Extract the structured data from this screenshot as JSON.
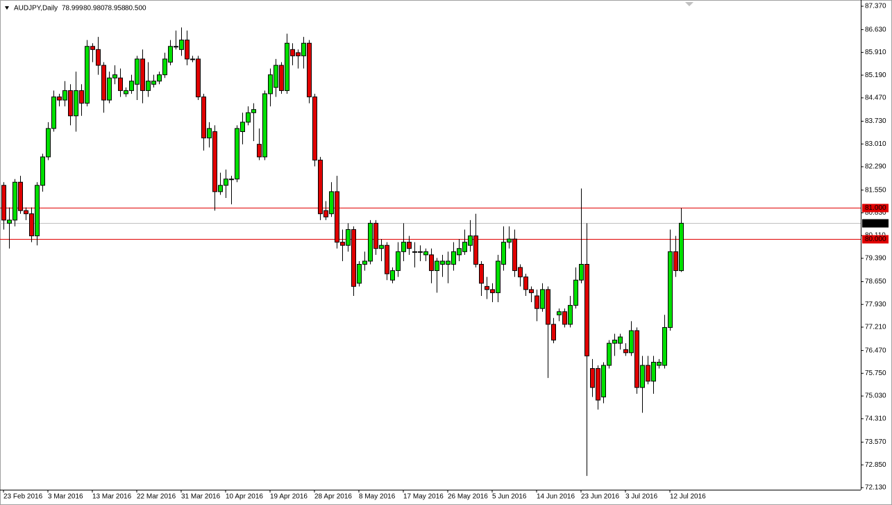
{
  "chart_data": {
    "type": "candlestick",
    "title": "AUDJPY,Daily",
    "header_values": [
      "78.999",
      "80.980",
      "78.958",
      "80.500"
    ],
    "categories": [
      "23 Feb 2016",
      null,
      null,
      null,
      null,
      null,
      null,
      null,
      "3 Mar 2016",
      null,
      null,
      null,
      null,
      null,
      null,
      null,
      "13 Mar 2016",
      null,
      null,
      null,
      null,
      null,
      null,
      null,
      "22 Mar 2016",
      null,
      null,
      null,
      null,
      null,
      null,
      null,
      "31 Mar 2016",
      null,
      null,
      null,
      null,
      null,
      null,
      null,
      "10 Apr 2016",
      null,
      null,
      null,
      null,
      null,
      null,
      null,
      "19 Apr 2016",
      null,
      null,
      null,
      null,
      null,
      null,
      null,
      "28 Apr 2016",
      null,
      null,
      null,
      null,
      null,
      null,
      null,
      "8 May 2016",
      null,
      null,
      null,
      null,
      null,
      null,
      null,
      "17 May 2016",
      null,
      null,
      null,
      null,
      null,
      null,
      null,
      "26 May 2016",
      null,
      null,
      null,
      null,
      null,
      null,
      null,
      "5 Jun 2016",
      null,
      null,
      null,
      null,
      null,
      null,
      null,
      "14 Jun 2016",
      null,
      null,
      null,
      null,
      null,
      null,
      null,
      "23 Jun 2016",
      null,
      null,
      null,
      null,
      null,
      null,
      null,
      "3 Jul 2016",
      null,
      null,
      null,
      null,
      null,
      null,
      null,
      "12 Jul 2016",
      null,
      null
    ],
    "open": [
      81.7,
      80.5,
      80.6,
      81.8,
      80.9,
      80.8,
      80.1,
      81.7,
      82.6,
      83.5,
      84.5,
      84.4,
      84.7,
      83.9,
      84.7,
      84.3,
      86.1,
      86.0,
      85.5,
      84.4,
      85.1,
      85.1,
      84.6,
      84.7,
      84.9,
      85.7,
      84.7,
      84.9,
      85.0,
      85.2,
      85.6,
      86.1,
      86.0,
      86.3,
      85.7,
      85.7,
      84.5,
      83.2,
      83.4,
      81.5,
      81.7,
      81.9,
      81.9,
      83.4,
      83.7,
      84.0,
      83.0,
      82.6,
      84.6,
      84.8,
      85.5,
      84.7,
      86.0,
      85.9,
      85.8,
      86.2,
      84.5,
      82.5,
      80.9,
      80.8,
      81.5,
      79.9,
      79.8,
      80.3,
      78.6,
      79.2,
      79.3,
      80.5,
      79.7,
      79.8,
      78.7,
      79.0,
      79.6,
      79.9,
      79.6,
      79.6,
      79.5,
      79.5,
      79.0,
      79.2,
      79.2,
      79.2,
      79.5,
      79.6,
      79.8,
      80.1,
      79.2,
      78.5,
      78.4,
      78.3,
      79.2,
      79.9,
      80.0,
      79.1,
      78.8,
      78.4,
      78.2,
      77.8,
      78.4,
      77.3,
      77.6,
      77.7,
      77.3,
      77.9,
      78.7,
      79.2,
      75.9,
      75.9,
      75.0,
      76.0,
      76.7,
      76.7,
      76.5,
      76.4,
      77.1,
      75.3,
      76.0,
      75.5,
      76.0,
      76.0,
      77.2,
      79.6,
      78.999
    ],
    "high": [
      81.8,
      81.0,
      81.9,
      82.0,
      81.0,
      81.0,
      81.8,
      82.7,
      83.7,
      84.7,
      84.6,
      85.0,
      84.9,
      85.3,
      84.9,
      86.3,
      86.2,
      86.4,
      85.6,
      85.3,
      85.5,
      85.4,
      84.8,
      85.2,
      85.8,
      86.0,
      85.6,
      85.2,
      85.3,
      85.9,
      86.3,
      86.6,
      86.7,
      86.6,
      85.8,
      85.8,
      84.6,
      83.7,
      83.6,
      82.1,
      82.2,
      82.0,
      83.6,
      84.0,
      84.2,
      84.3,
      83.5,
      84.7,
      85.4,
      85.7,
      85.6,
      86.5,
      86.2,
      86.0,
      86.4,
      86.3,
      84.6,
      82.6,
      81.2,
      81.8,
      82.0,
      80.3,
      80.5,
      80.4,
      79.3,
      79.6,
      80.6,
      80.6,
      80.0,
      79.9,
      79.1,
      79.9,
      80.5,
      80.1,
      79.9,
      79.8,
      79.7,
      79.7,
      79.4,
      79.5,
      79.6,
      79.9,
      80.0,
      80.3,
      80.6,
      80.8,
      79.3,
      78.8,
      78.6,
      79.5,
      80.4,
      80.4,
      80.3,
      79.2,
      78.9,
      78.5,
      78.4,
      78.6,
      78.5,
      77.5,
      77.8,
      77.8,
      78.2,
      79.1,
      81.6,
      80.5,
      76.2,
      76.0,
      76.1,
      76.8,
      77.0,
      77.0,
      76.7,
      77.4,
      77.2,
      76.3,
      76.3,
      76.3,
      76.2,
      77.6,
      80.3,
      80.1,
      80.98
    ],
    "low": [
      80.3,
      79.7,
      80.4,
      80.8,
      80.6,
      79.9,
      79.8,
      81.5,
      82.5,
      83.4,
      84.2,
      84.2,
      83.6,
      83.4,
      83.9,
      84.2,
      85.6,
      85.2,
      84.0,
      84.3,
      84.9,
      84.5,
      84.5,
      84.6,
      84.4,
      84.3,
      84.5,
      84.8,
      84.9,
      85.1,
      85.5,
      86.0,
      85.8,
      85.5,
      85.6,
      84.4,
      82.8,
      82.9,
      80.9,
      81.4,
      81.3,
      81.1,
      81.8,
      83.0,
      83.6,
      83.1,
      82.5,
      82.5,
      84.2,
      84.5,
      84.6,
      84.6,
      85.5,
      85.4,
      85.4,
      84.3,
      82.3,
      80.6,
      80.6,
      80.7,
      79.7,
      79.3,
      79.6,
      78.2,
      78.5,
      79.0,
      79.2,
      79.5,
      79.3,
      78.7,
      78.6,
      78.8,
      79.3,
      79.5,
      79.1,
      79.3,
      79.3,
      78.6,
      78.3,
      78.8,
      78.6,
      79.0,
      79.3,
      79.5,
      79.6,
      79.1,
      78.2,
      78.1,
      78.0,
      78.0,
      79.0,
      79.7,
      78.8,
      78.5,
      78.2,
      78.0,
      77.4,
      77.7,
      75.6,
      76.7,
      77.4,
      77.2,
      77.2,
      77.8,
      78.6,
      72.5,
      75.0,
      74.6,
      74.8,
      75.9,
      76.3,
      76.5,
      76.3,
      76.3,
      75.1,
      74.5,
      75.4,
      75.1,
      75.9,
      75.9,
      77.1,
      78.8,
      78.958
    ],
    "close": [
      80.6,
      80.6,
      81.8,
      80.9,
      80.8,
      80.1,
      81.7,
      82.6,
      83.5,
      84.5,
      84.4,
      84.7,
      83.9,
      84.7,
      84.3,
      86.1,
      86.0,
      85.5,
      84.4,
      85.1,
      85.2,
      84.7,
      84.7,
      85.0,
      85.7,
      84.7,
      85.0,
      85.0,
      85.2,
      85.7,
      86.1,
      86.1,
      86.3,
      85.7,
      85.7,
      84.5,
      83.2,
      83.5,
      81.5,
      81.7,
      81.9,
      81.9,
      83.5,
      83.7,
      84.0,
      84.1,
      82.6,
      84.6,
      85.2,
      85.5,
      84.7,
      86.2,
      85.8,
      85.8,
      86.2,
      84.5,
      82.5,
      80.8,
      80.7,
      81.5,
      79.9,
      79.8,
      80.3,
      78.5,
      79.2,
      79.3,
      80.5,
      79.7,
      79.8,
      78.9,
      79.0,
      79.6,
      79.9,
      79.7,
      79.6,
      79.6,
      79.6,
      79.0,
      79.3,
      79.3,
      79.3,
      79.6,
      79.7,
      79.9,
      80.1,
      79.2,
      78.6,
      78.4,
      78.3,
      79.3,
      79.9,
      80.0,
      79.0,
      78.8,
      78.4,
      78.3,
      77.8,
      78.4,
      77.3,
      76.8,
      77.7,
      77.3,
      77.9,
      78.7,
      79.2,
      76.3,
      75.3,
      74.9,
      76.0,
      76.7,
      76.8,
      76.9,
      76.4,
      77.1,
      75.3,
      76.0,
      75.5,
      76.1,
      76.1,
      77.2,
      79.6,
      79.0,
      80.5
    ],
    "up_color": "#00e000",
    "down_color": "#e00000",
    "ylim": [
      72.063,
      87.568
    ],
    "yticks": [
      {
        "value": 87.37,
        "label": "87.370"
      },
      {
        "value": 86.63,
        "label": "86.630"
      },
      {
        "value": 85.91,
        "label": "85.910"
      },
      {
        "value": 85.19,
        "label": "85.190"
      },
      {
        "value": 84.47,
        "label": "84.470"
      },
      {
        "value": 83.73,
        "label": "83.730"
      },
      {
        "value": 83.01,
        "label": "83.010"
      },
      {
        "value": 82.29,
        "label": "82.290"
      },
      {
        "value": 81.55,
        "label": "81.550"
      },
      {
        "value": 80.83,
        "label": "80.830"
      },
      {
        "value": 80.11,
        "label": "80.110"
      },
      {
        "value": 79.39,
        "label": "79.390"
      },
      {
        "value": 78.65,
        "label": "78.650"
      },
      {
        "value": 77.93,
        "label": "77.930"
      },
      {
        "value": 77.21,
        "label": "77.210"
      },
      {
        "value": 76.47,
        "label": "76.470"
      },
      {
        "value": 75.75,
        "label": "75.750"
      },
      {
        "value": 75.03,
        "label": "75.030"
      },
      {
        "value": 74.31,
        "label": "74.310"
      },
      {
        "value": 73.57,
        "label": "73.570"
      },
      {
        "value": 72.85,
        "label": "72.850"
      },
      {
        "value": 72.13,
        "label": "72.130"
      }
    ],
    "levels": [
      {
        "value": 81,
        "label": "81.000",
        "color": "#e00000"
      },
      {
        "value": 80,
        "label": "80.000",
        "color": "#e00000"
      }
    ],
    "price_line": {
      "value": 80.5,
      "label": "80.500",
      "color": "#000000"
    }
  }
}
